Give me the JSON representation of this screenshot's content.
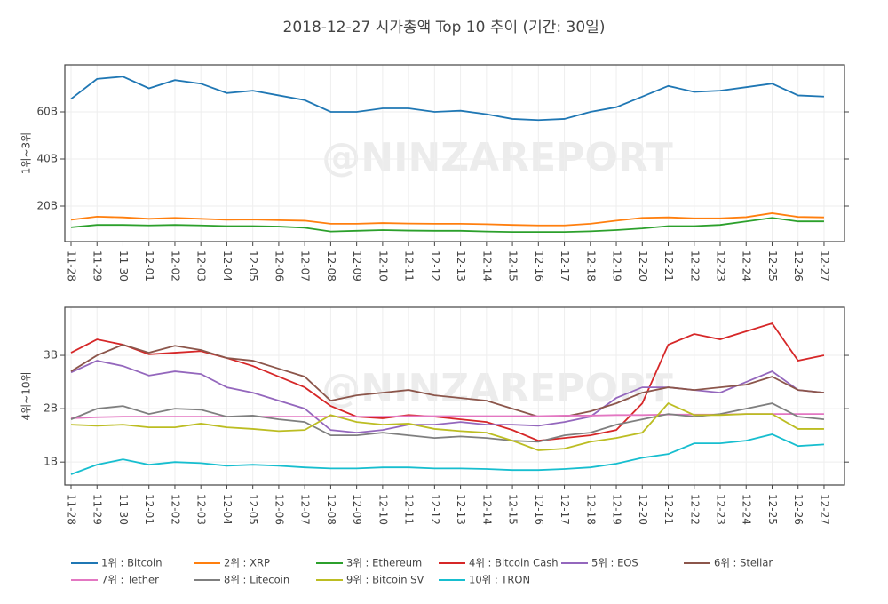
{
  "title": "2018-12-27 시가총액 Top 10 추이 (기간: 30일)",
  "watermark": "@NINZAREPORT",
  "chart_data": [
    {
      "type": "line",
      "ylabel": "1위~3위",
      "x": [
        "11-28",
        "11-29",
        "11-30",
        "12-01",
        "12-02",
        "12-03",
        "12-04",
        "12-05",
        "12-06",
        "12-07",
        "12-08",
        "12-09",
        "12-10",
        "12-11",
        "12-12",
        "12-13",
        "12-14",
        "12-15",
        "12-16",
        "12-17",
        "12-18",
        "12-19",
        "12-20",
        "12-21",
        "12-22",
        "12-23",
        "12-24",
        "12-25",
        "12-26",
        "12-27"
      ],
      "ylim": [
        4.9,
        80
      ],
      "yticks": [
        {
          "value": 20,
          "label": "20B"
        },
        {
          "value": 40,
          "label": "40B"
        },
        {
          "value": 60,
          "label": "60B"
        }
      ],
      "grid": true,
      "series": [
        {
          "name": "1위 : Bitcoin",
          "color": "#1f77b4",
          "values": [
            65.5,
            74,
            75,
            70,
            73.5,
            72,
            68,
            69,
            67,
            65,
            60,
            60,
            61.5,
            61.5,
            60,
            60.5,
            59,
            57,
            56.5,
            57,
            60,
            62,
            66.5,
            71,
            68.5,
            69,
            70.5,
            72,
            67,
            66.5
          ]
        },
        {
          "name": "2위 : XRP",
          "color": "#ff7f0e",
          "values": [
            14.2,
            15.5,
            15.2,
            14.6,
            15,
            14.6,
            14.2,
            14.3,
            14,
            13.8,
            12.5,
            12.5,
            12.8,
            12.6,
            12.5,
            12.5,
            12.3,
            12,
            11.8,
            11.8,
            12.5,
            13.8,
            15,
            15.2,
            14.8,
            14.8,
            15.3,
            17,
            15.4,
            15.2
          ]
        },
        {
          "name": "3위 : Ethereum",
          "color": "#2ca02c",
          "values": [
            11,
            12,
            12,
            11.8,
            12,
            11.8,
            11.5,
            11.5,
            11.3,
            10.8,
            9.2,
            9.5,
            9.8,
            9.6,
            9.5,
            9.5,
            9.2,
            9,
            9,
            9,
            9.3,
            9.8,
            10.5,
            11.5,
            11.5,
            12,
            13.5,
            15,
            13.5,
            13.5
          ]
        }
      ]
    },
    {
      "type": "line",
      "ylabel": "4위~10위",
      "x": [
        "11-28",
        "11-29",
        "11-30",
        "12-01",
        "12-02",
        "12-03",
        "12-04",
        "12-05",
        "12-06",
        "12-07",
        "12-08",
        "12-09",
        "12-10",
        "12-11",
        "12-12",
        "12-13",
        "12-14",
        "12-15",
        "12-16",
        "12-17",
        "12-18",
        "12-19",
        "12-20",
        "12-21",
        "12-22",
        "12-23",
        "12-24",
        "12-25",
        "12-26",
        "12-27"
      ],
      "ylim": [
        0.57,
        3.9
      ],
      "yticks": [
        {
          "value": 1,
          "label": "1B"
        },
        {
          "value": 2,
          "label": "2B"
        },
        {
          "value": 3,
          "label": "3B"
        }
      ],
      "grid": true,
      "series": [
        {
          "name": "4위 : Bitcoin Cash",
          "color": "#d62728",
          "values": [
            3.05,
            3.3,
            3.2,
            3.02,
            3.05,
            3.08,
            2.95,
            2.8,
            2.6,
            2.4,
            2.05,
            1.85,
            1.82,
            1.88,
            1.85,
            1.8,
            1.75,
            1.6,
            1.4,
            1.45,
            1.5,
            1.6,
            2.1,
            3.2,
            3.4,
            3.3,
            3.45,
            3.6,
            2.9,
            3.0
          ]
        },
        {
          "name": "5위 : EOS",
          "color": "#9467bd",
          "values": [
            2.68,
            2.9,
            2.8,
            2.62,
            2.7,
            2.65,
            2.4,
            2.3,
            2.15,
            2.0,
            1.6,
            1.55,
            1.6,
            1.7,
            1.7,
            1.75,
            1.7,
            1.7,
            1.68,
            1.75,
            1.85,
            2.2,
            2.4,
            2.4,
            2.35,
            2.3,
            2.5,
            2.7,
            2.35,
            2.3
          ]
        },
        {
          "name": "6위 : Stellar",
          "color": "#8c564b",
          "values": [
            2.7,
            3.0,
            3.2,
            3.05,
            3.18,
            3.1,
            2.95,
            2.9,
            2.75,
            2.6,
            2.15,
            2.25,
            2.3,
            2.35,
            2.25,
            2.2,
            2.15,
            2.0,
            1.85,
            1.85,
            1.95,
            2.1,
            2.3,
            2.4,
            2.35,
            2.4,
            2.45,
            2.6,
            2.35,
            2.3
          ]
        },
        {
          "name": "7위 : Tether",
          "color": "#e377c2",
          "values": [
            1.82,
            1.84,
            1.85,
            1.85,
            1.85,
            1.85,
            1.85,
            1.85,
            1.85,
            1.85,
            1.85,
            1.85,
            1.85,
            1.86,
            1.86,
            1.86,
            1.86,
            1.86,
            1.86,
            1.87,
            1.87,
            1.88,
            1.88,
            1.89,
            1.89,
            1.89,
            1.9,
            1.9,
            1.9,
            1.9
          ]
        },
        {
          "name": "8위 : Litecoin",
          "color": "#7f7f7f",
          "values": [
            1.8,
            2.0,
            2.05,
            1.9,
            2.0,
            1.98,
            1.85,
            1.87,
            1.8,
            1.75,
            1.5,
            1.5,
            1.55,
            1.5,
            1.45,
            1.48,
            1.45,
            1.4,
            1.38,
            1.5,
            1.55,
            1.7,
            1.8,
            1.9,
            1.85,
            1.9,
            2.0,
            2.1,
            1.85,
            1.8
          ]
        },
        {
          "name": "9위 : Bitcoin SV",
          "color": "#bcbd22",
          "values": [
            1.7,
            1.68,
            1.7,
            1.65,
            1.65,
            1.72,
            1.65,
            1.62,
            1.58,
            1.6,
            1.88,
            1.75,
            1.7,
            1.72,
            1.62,
            1.58,
            1.55,
            1.4,
            1.22,
            1.25,
            1.38,
            1.45,
            1.55,
            2.1,
            1.88,
            1.88,
            1.9,
            1.9,
            1.62,
            1.62
          ]
        },
        {
          "name": "10위 : TRON",
          "color": "#17becf",
          "values": [
            0.77,
            0.95,
            1.05,
            0.95,
            1.0,
            0.98,
            0.93,
            0.95,
            0.93,
            0.9,
            0.88,
            0.88,
            0.9,
            0.9,
            0.88,
            0.88,
            0.87,
            0.85,
            0.85,
            0.87,
            0.9,
            0.97,
            1.08,
            1.15,
            1.35,
            1.35,
            1.4,
            1.52,
            1.3,
            1.33
          ]
        }
      ]
    }
  ]
}
